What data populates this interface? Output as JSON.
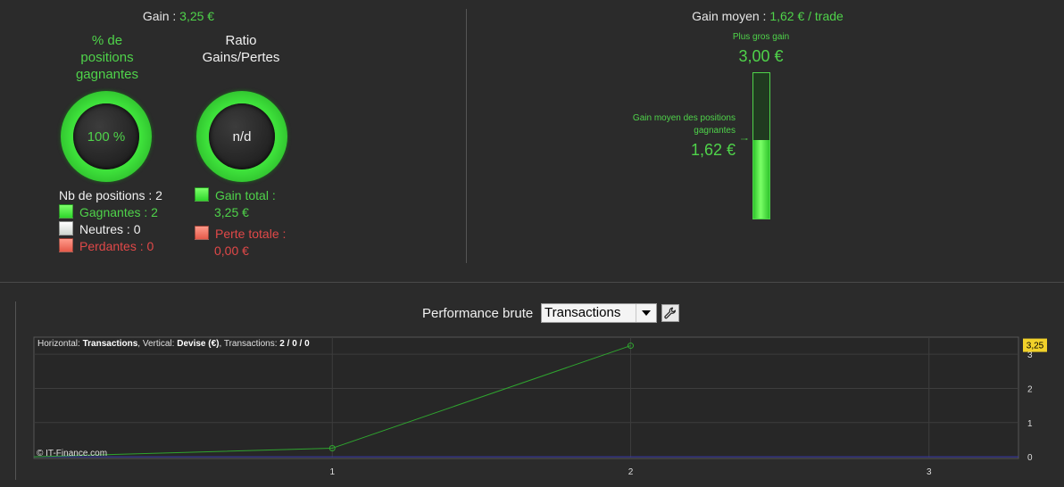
{
  "gain": {
    "label": "Gain :",
    "value": "3,25 €"
  },
  "win_gauge": {
    "title_lines": [
      "% de",
      "positions",
      "gagnantes"
    ],
    "value": "100 %"
  },
  "ratio_gauge": {
    "title_lines": [
      "Ratio",
      "Gains/Pertes"
    ],
    "value": "n/d"
  },
  "positions": {
    "total": "Nb de positions : 2",
    "winners": "Gagnantes : 2",
    "neutral": "Neutres : 0",
    "losers": "Perdantes : 0"
  },
  "totals": {
    "gain_label": "Gain total :",
    "gain_value": "3,25 €",
    "loss_label": "Perte totale :",
    "loss_value": "0,00 €"
  },
  "avg_gain": {
    "label": "Gain moyen :",
    "value": "1,62 € / trade"
  },
  "best_gain": {
    "label": "Plus gros gain",
    "value": "3,00 €"
  },
  "avg_winning": {
    "label_lines": [
      "Gain moyen des positions",
      "gagnantes"
    ],
    "value": "1,62 €",
    "fill_fraction": 0.54
  },
  "performance": {
    "label": "Performance brute",
    "selected": "Transactions"
  },
  "chart_info": {
    "h_label": "Horizontal:",
    "h_value": "Transactions",
    "v_label": ", Vertical:",
    "v_value": "Devise (€)",
    "t_label": ", Transactions:",
    "t_win": "2",
    "sep1": " / ",
    "t_neutral": "0",
    "sep2": " / ",
    "t_loss": "0"
  },
  "copyright": "© IT-Finance.com",
  "colors": {
    "green": "#4fd34a",
    "red": "#e04848",
    "line": "#2fa52f",
    "zero_line": "#3a3ab0"
  },
  "chart_data": {
    "type": "line",
    "x": [
      0,
      1,
      2
    ],
    "series": [
      {
        "values": [
          0,
          0.25,
          3.25
        ]
      }
    ],
    "xticks": [
      "1",
      "2",
      "3"
    ],
    "xtick_values": [
      1,
      2,
      3
    ],
    "yticks": [
      "0",
      "1",
      "2",
      "3"
    ],
    "ytick_values": [
      0,
      1,
      2,
      3
    ],
    "last_value_label": "3,25",
    "xlim": [
      0,
      3.3
    ],
    "ylim": [
      -0.05,
      3.5
    ],
    "grid": true
  }
}
